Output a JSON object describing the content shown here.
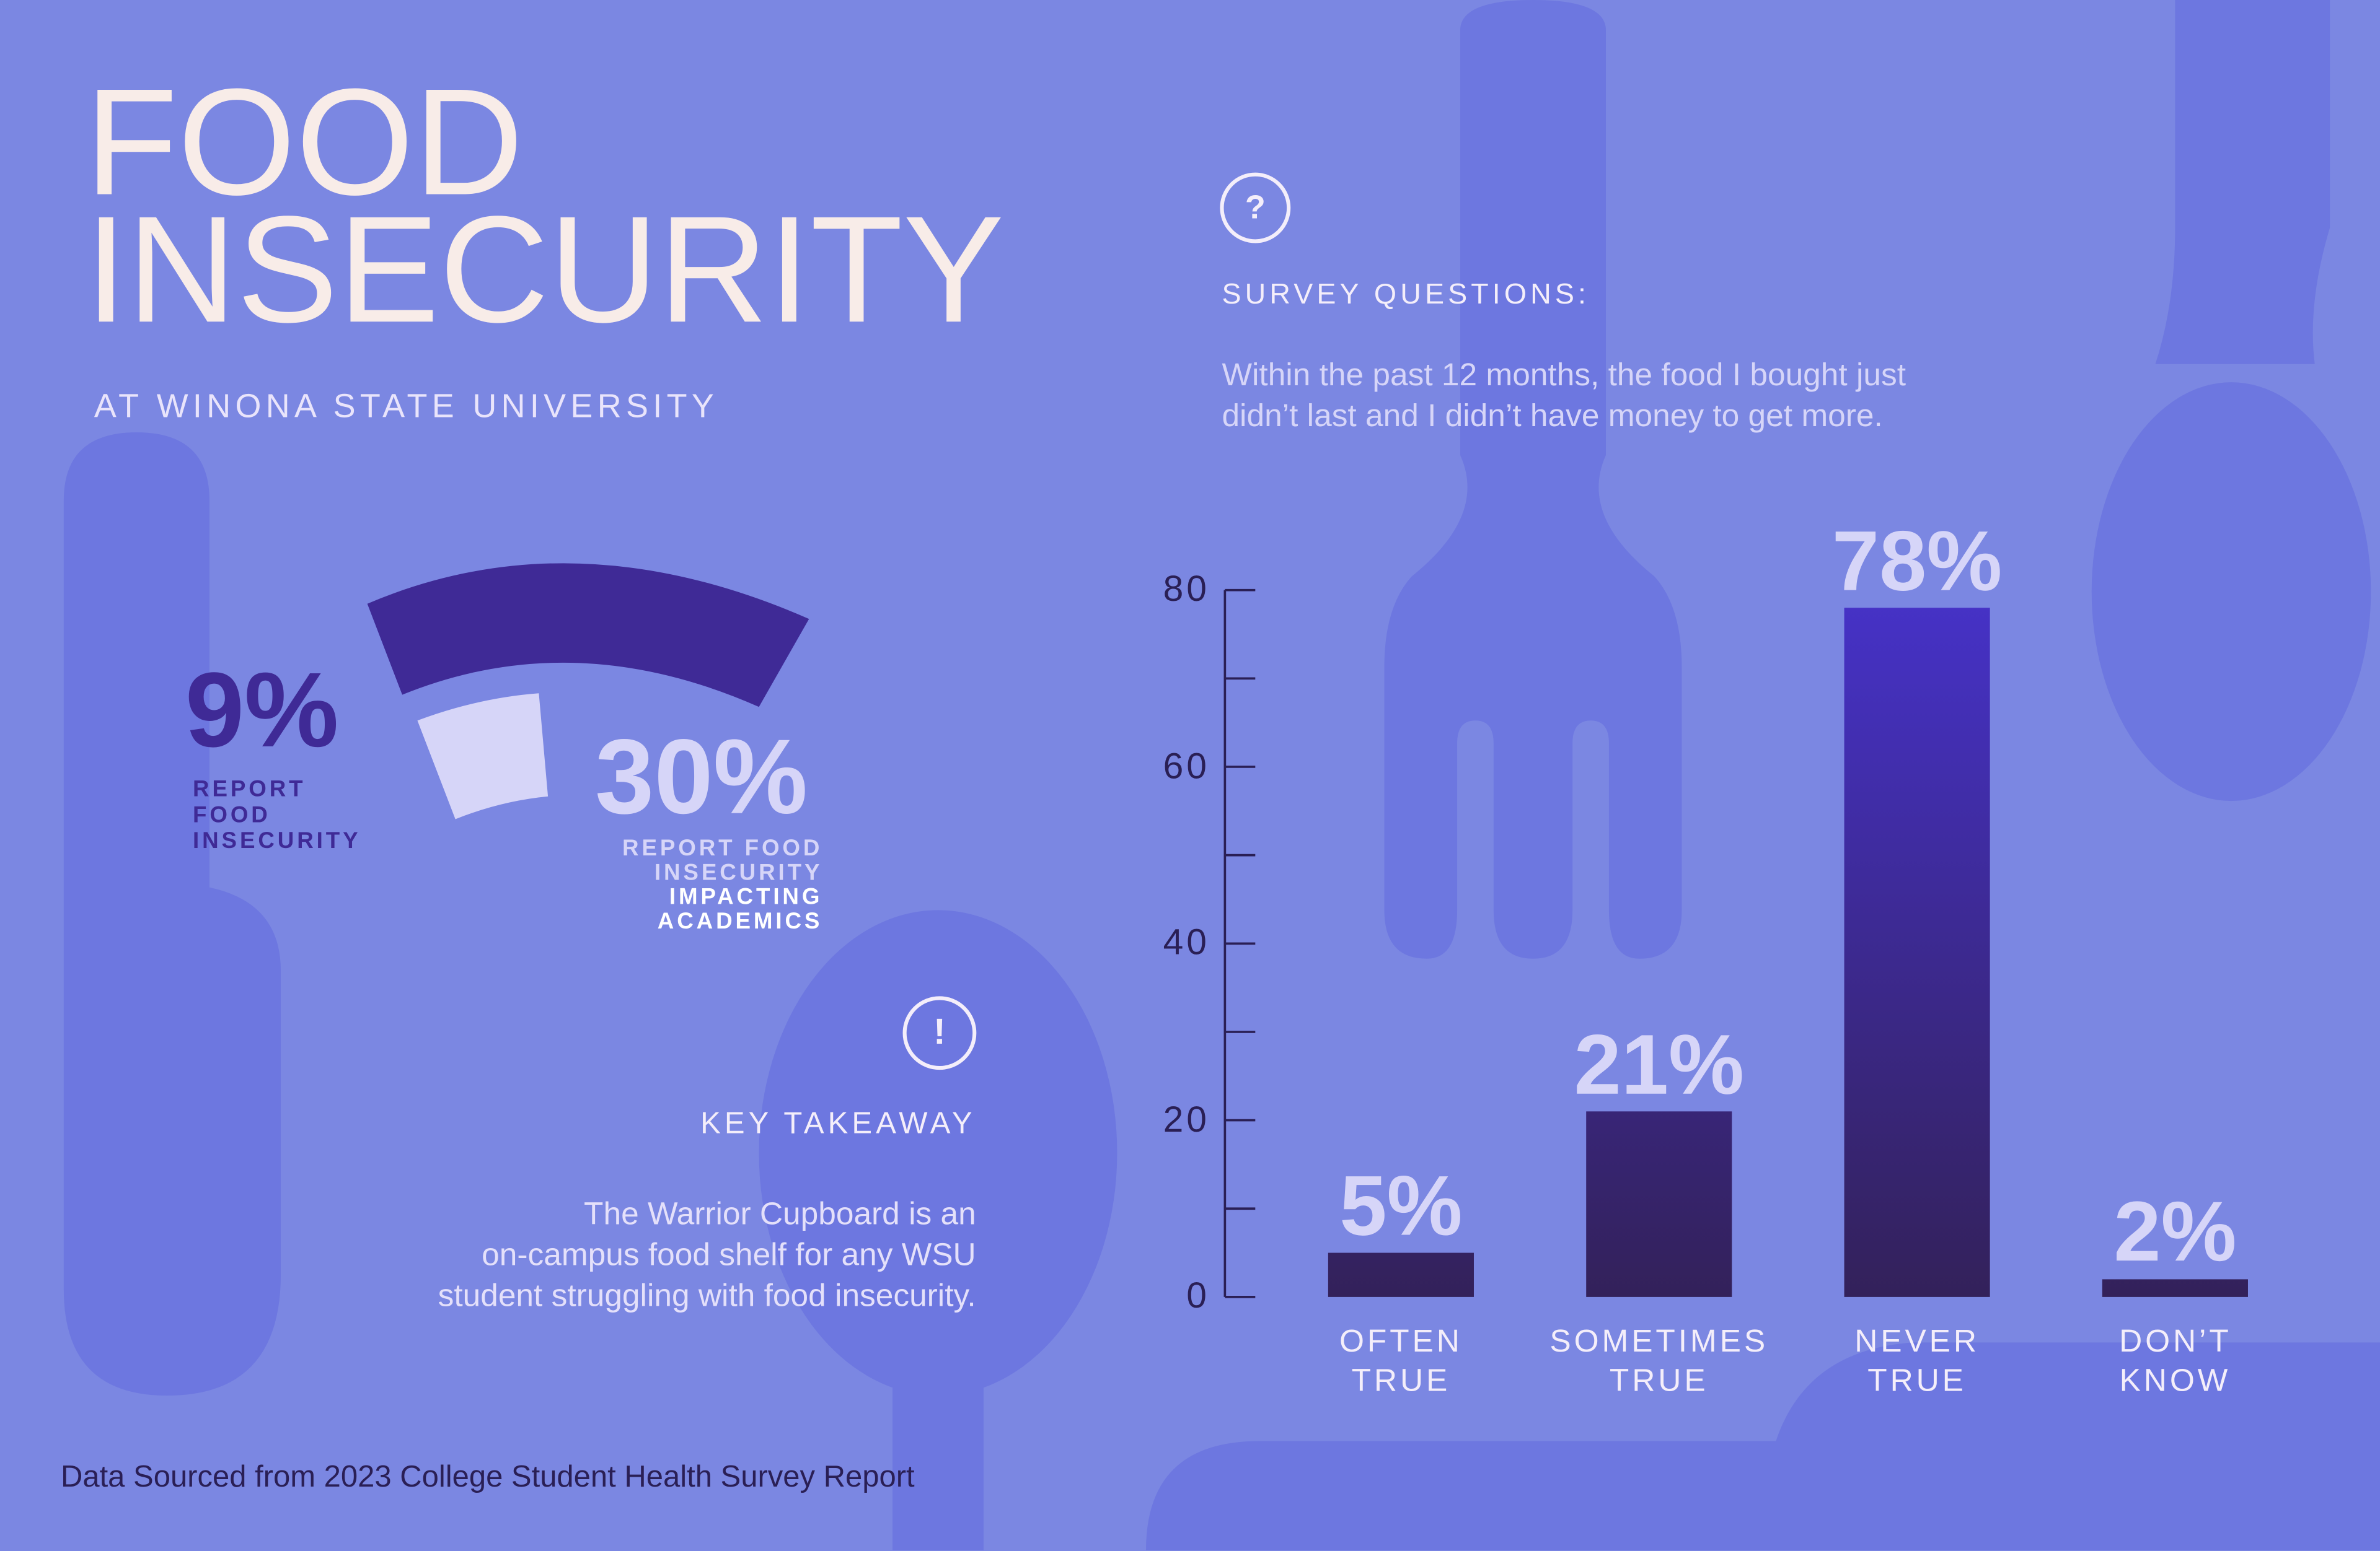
{
  "header": {
    "title_lines": [
      "FOOD",
      "INSECURITY"
    ],
    "subtitle": "AT WINONA STATE UNIVERSITY"
  },
  "stats": [
    {
      "value": "9%",
      "label_lines": [
        "REPORT",
        "FOOD",
        "INSECURITY"
      ]
    },
    {
      "value": "30%",
      "label_lines": [
        "REPORT FOOD",
        "INSECURITY"
      ],
      "emphasis_lines": [
        "IMPACTING",
        "ACADEMICS"
      ]
    }
  ],
  "survey": {
    "icon": "?",
    "heading": "SURVEY QUESTIONS:",
    "question_lines": [
      "Within the past 12 months, the food I bought just",
      "didn’t last and I didn’t have money to get more."
    ]
  },
  "takeaway": {
    "icon": "!",
    "heading": "KEY TAKEAWAY",
    "body_lines": [
      "The Warrior Cupboard is an",
      "on-campus food shelf for any WSU",
      "student struggling with food insecurity."
    ]
  },
  "source": "Data Sourced from 2023 College Student Health Survey Report",
  "chart_data": {
    "type": "bar",
    "categories": [
      "OFTEN TRUE",
      "SOMETIMES TRUE",
      "NEVER TRUE",
      "DON’T KNOW"
    ],
    "values": [
      5,
      21,
      78,
      2
    ],
    "value_labels": [
      "5%",
      "21%",
      "78%",
      "2%"
    ],
    "ylim": [
      0,
      80
    ],
    "yticks": [
      0,
      20,
      40,
      60,
      80
    ],
    "minor_yticks": [
      10,
      30,
      50,
      70
    ],
    "colors": [
      "#33215a",
      "#4632c8"
    ]
  }
}
